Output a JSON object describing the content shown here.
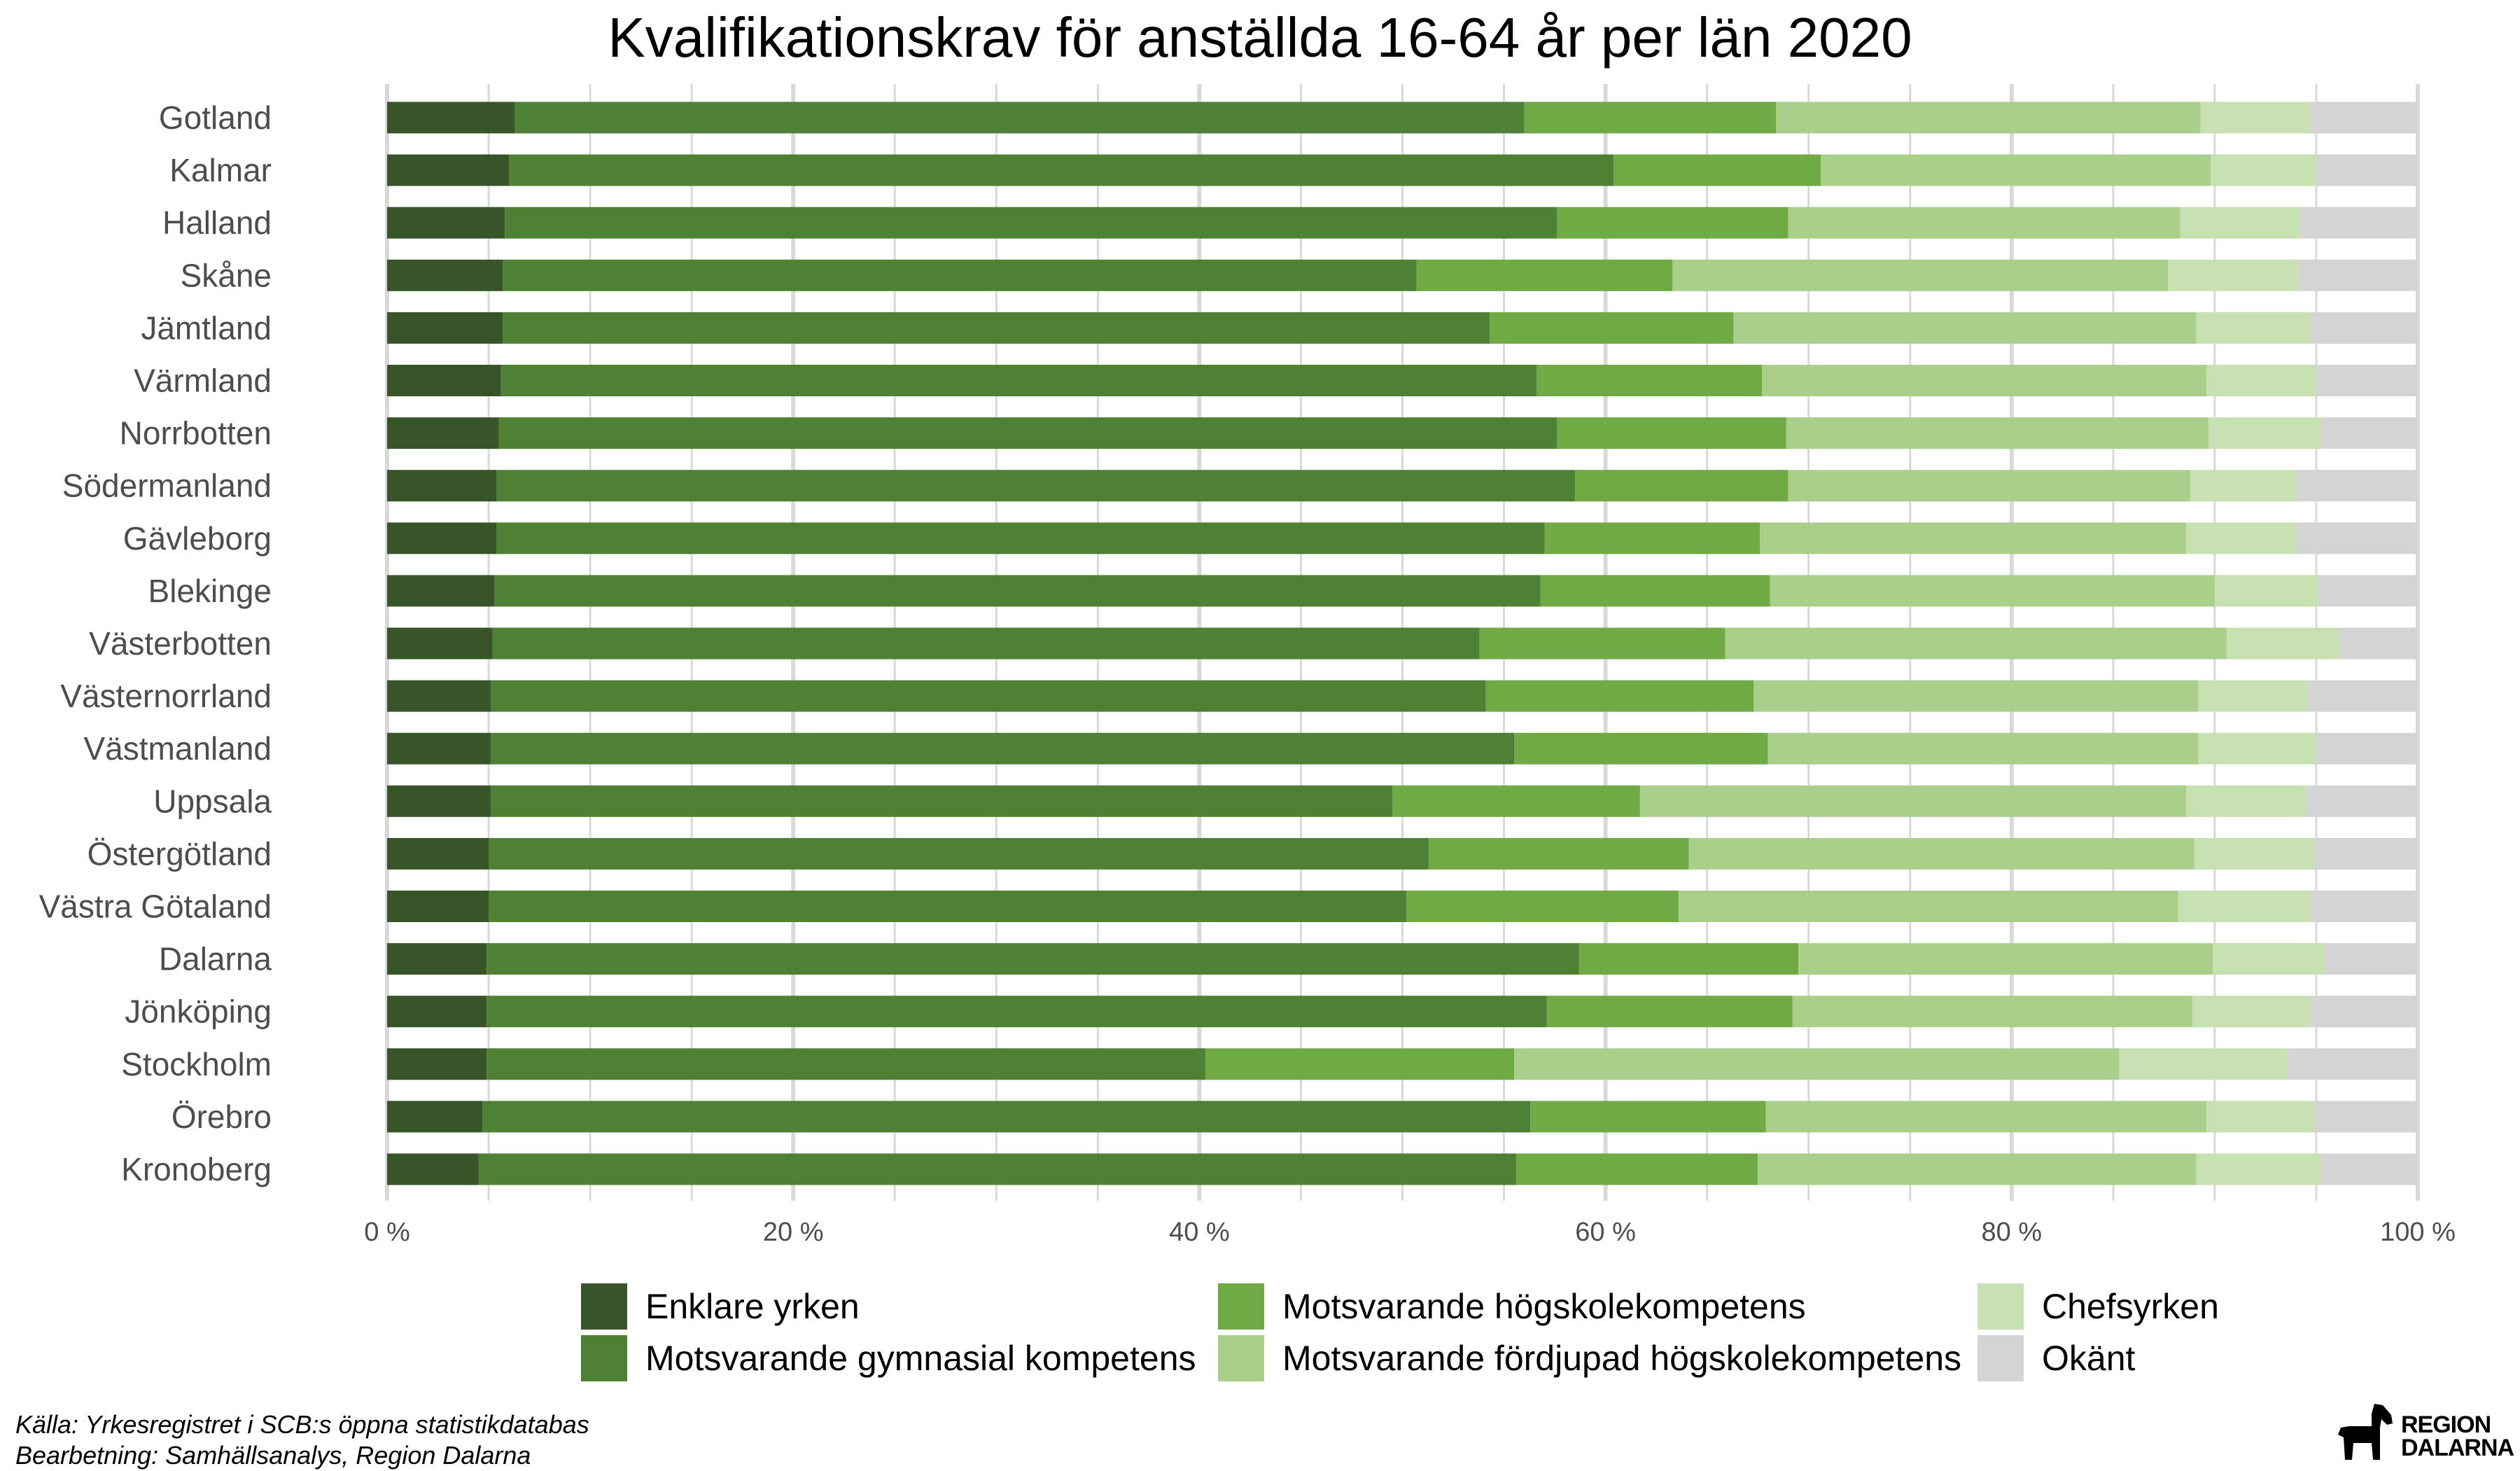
{
  "chart_data": {
    "type": "bar",
    "orientation": "horizontal",
    "stacked": true,
    "title": "Kvalifikationskrav för anställda 16-64 år per län 2020",
    "categories": [
      "Gotland",
      "Kalmar",
      "Halland",
      "Skåne",
      "Jämtland",
      "Värmland",
      "Norrbotten",
      "Södermanland",
      "Gävleborg",
      "Blekinge",
      "Västerbotten",
      "Västernorrland",
      "Västmanland",
      "Uppsala",
      "Östergötland",
      "Västra Götaland",
      "Dalarna",
      "Jönköping",
      "Stockholm",
      "Örebro",
      "Kronoberg"
    ],
    "series": [
      {
        "name": "Enklare yrken",
        "color": "#38552a",
        "values": [
          6.3,
          6.0,
          5.8,
          5.7,
          5.7,
          5.6,
          5.5,
          5.4,
          5.4,
          5.3,
          5.2,
          5.1,
          5.1,
          5.1,
          5.0,
          5.0,
          4.9,
          4.9,
          4.9,
          4.7,
          4.5
        ]
      },
      {
        "name": "Motsvarande gymnasial kompetens",
        "color": "#4f8134",
        "values": [
          49.7,
          54.4,
          51.8,
          45.0,
          48.6,
          51.0,
          52.1,
          53.1,
          51.6,
          51.5,
          48.6,
          49.0,
          50.4,
          44.4,
          46.3,
          45.2,
          53.8,
          52.2,
          35.4,
          51.6,
          51.1
        ]
      },
      {
        "name": "Motsvarande högskolekompetens",
        "color": "#6faa45",
        "values": [
          12.4,
          10.2,
          11.4,
          12.6,
          12.0,
          11.1,
          11.3,
          10.5,
          10.6,
          11.3,
          12.1,
          13.2,
          12.5,
          12.2,
          12.8,
          13.4,
          10.8,
          12.1,
          15.2,
          11.6,
          11.9
        ]
      },
      {
        "name": "Motsvarande fördjupad högskolekompetens",
        "color": "#a9cf8a",
        "values": [
          20.9,
          19.2,
          19.3,
          24.4,
          22.8,
          21.9,
          20.8,
          19.8,
          21.0,
          21.9,
          24.7,
          21.9,
          21.2,
          26.9,
          24.9,
          24.6,
          20.4,
          19.7,
          29.8,
          21.7,
          21.6
        ]
      },
      {
        "name": "Chefsyrken",
        "color": "#c8e1b3",
        "values": [
          5.4,
          5.2,
          5.9,
          6.4,
          5.6,
          5.4,
          5.5,
          5.2,
          5.4,
          5.1,
          5.5,
          5.4,
          5.8,
          5.9,
          5.9,
          6.5,
          5.5,
          5.8,
          8.3,
          5.3,
          6.1
        ]
      },
      {
        "name": "Okänt",
        "color": "#d4d4d4",
        "values": [
          5.3,
          5.0,
          5.8,
          5.9,
          5.3,
          5.0,
          4.8,
          6.0,
          6.0,
          4.9,
          3.9,
          5.4,
          5.0,
          5.5,
          5.1,
          5.3,
          4.6,
          5.3,
          6.4,
          5.1,
          4.8
        ]
      }
    ],
    "xlim": [
      0,
      100
    ],
    "xticks": [
      0,
      20,
      40,
      60,
      80,
      100
    ],
    "xtick_labels": [
      "0 %",
      "20 %",
      "40 %",
      "60 %",
      "80 %",
      "100 %"
    ],
    "xlabel": "",
    "ylabel": "",
    "grid": true,
    "legend_position": "bottom",
    "background": "#ffffff",
    "gridline_color": "#d9d9d9",
    "axis_text_color": "#4d4d4d"
  },
  "footer": {
    "source_line": "Källa: Yrkesregistret i SCB:s öppna statistikdatabas",
    "processing_line": "Bearbetning: Samhällsanalys, Region Dalarna"
  },
  "logo": {
    "line1": "REGION",
    "line2": "DALARNA",
    "icon": "dala-horse-icon"
  }
}
